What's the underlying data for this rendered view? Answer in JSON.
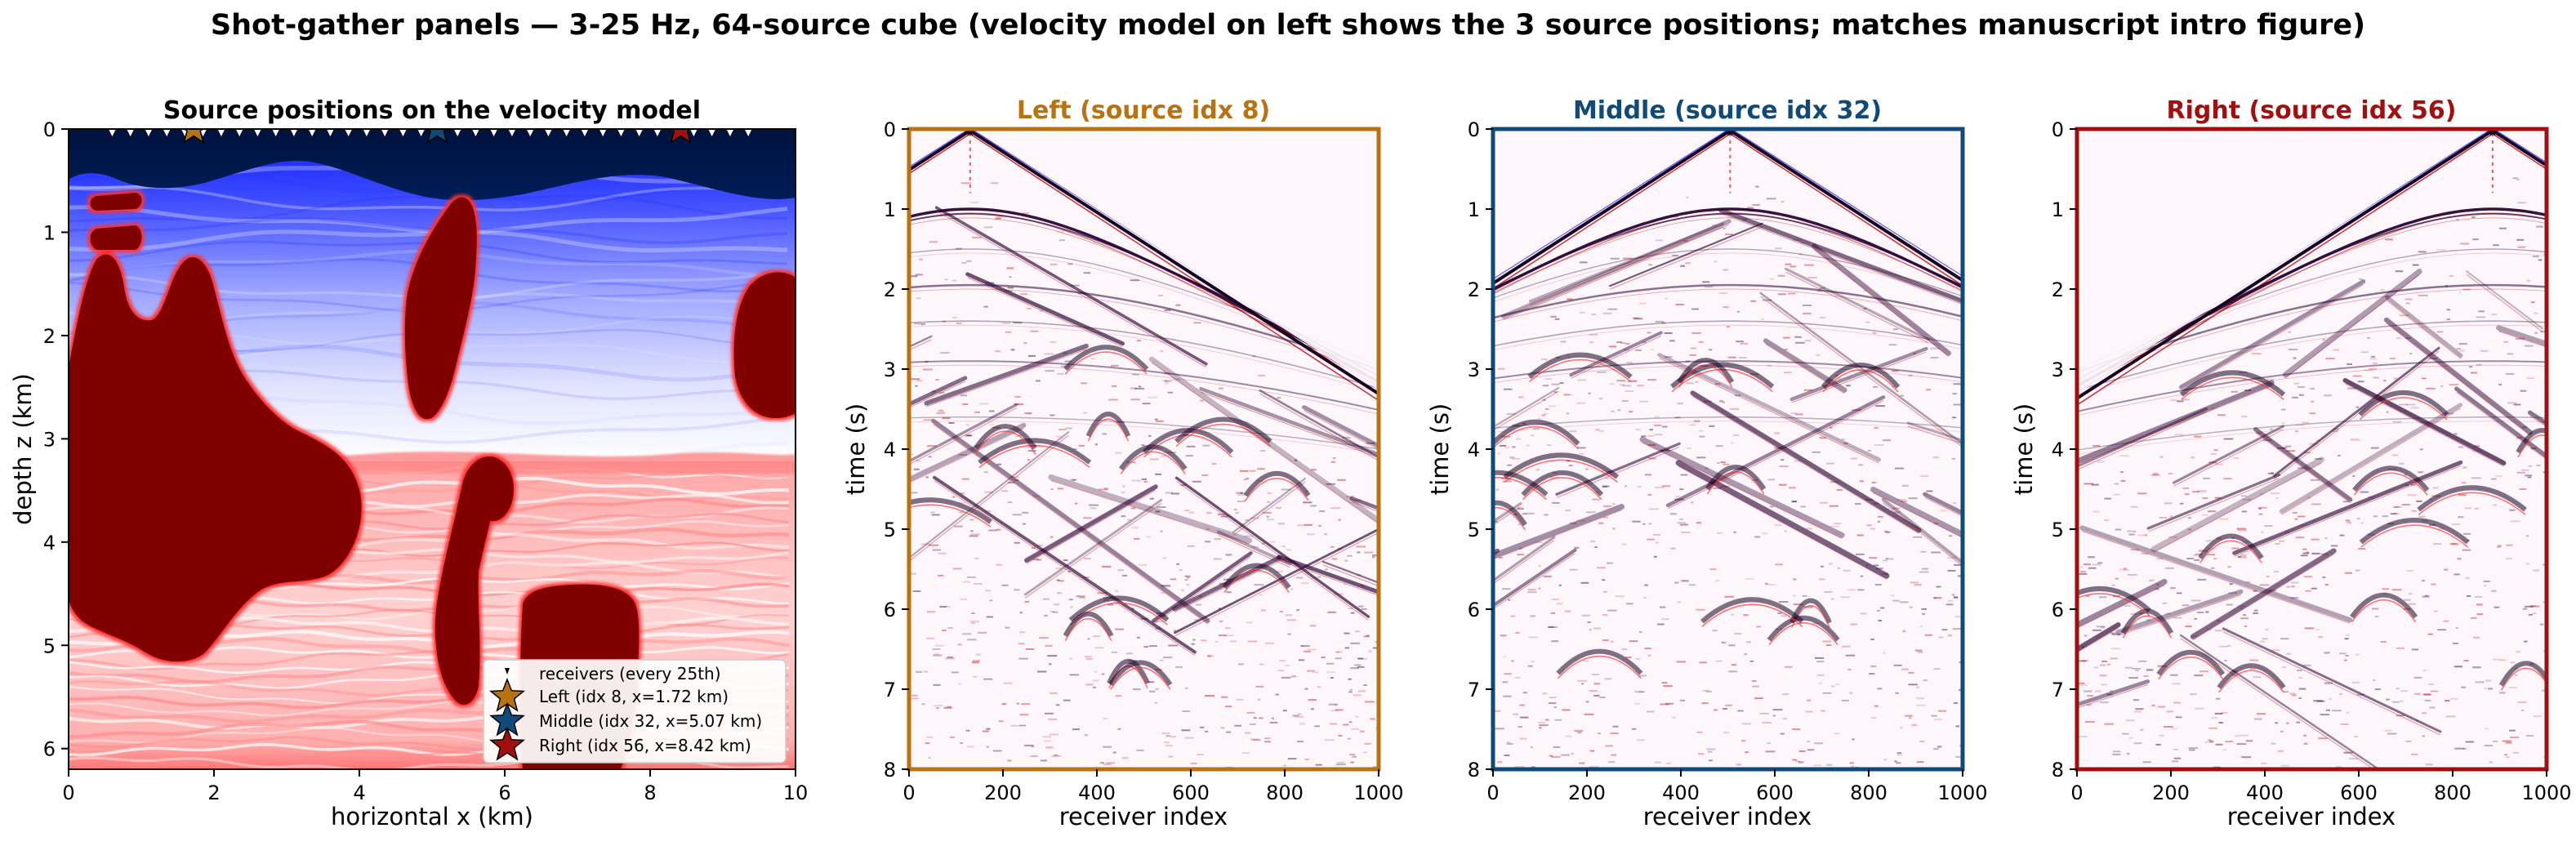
{
  "figure": {
    "suptitle": "Shot-gather panels  —  3-25 Hz, 64-source cube  (velocity model on left shows the 3 source positions; matches manuscript intro figure)"
  },
  "colors": {
    "left": "#b8720f",
    "middle": "#0f4a78",
    "right": "#a30f0f",
    "axis": "#000000",
    "ocean": "#001a4d",
    "salt": "#800000"
  },
  "chart_data": [
    {
      "type": "heatmap",
      "title": "Source positions on the velocity model",
      "xlabel": "horizontal x (km)",
      "ylabel": "depth z (km)",
      "xlim": [
        0,
        10
      ],
      "ylim": [
        6.2,
        0
      ],
      "xticks": [
        "0",
        "2",
        "4",
        "6",
        "8",
        "10"
      ],
      "yticks": [
        "0",
        "1",
        "2",
        "3",
        "4",
        "5",
        "6"
      ],
      "receivers_label": "receivers (every 25th)",
      "receiver_x_km": [
        0.6,
        0.85,
        1.1,
        1.35,
        1.6,
        1.85,
        2.1,
        2.35,
        2.6,
        2.85,
        3.1,
        3.35,
        3.6,
        3.85,
        4.1,
        4.35,
        4.6,
        4.85,
        5.1,
        5.35,
        5.6,
        5.85,
        6.1,
        6.35,
        6.6,
        6.85,
        7.1,
        7.35,
        7.6,
        7.85,
        8.1,
        8.35,
        8.6,
        8.85,
        9.1,
        9.35
      ],
      "sources": [
        {
          "name": "Left",
          "label": "Left  (idx 8, x=1.72 km)",
          "x_km": 1.72,
          "color": "#b8720f"
        },
        {
          "name": "Middle",
          "label": "Middle  (idx 32, x=5.07 km)",
          "x_km": 5.07,
          "color": "#0f4a78"
        },
        {
          "name": "Right",
          "label": "Right  (idx 56, x=8.42 km)",
          "x_km": 8.42,
          "color": "#a30f0f"
        }
      ],
      "legend_position": "lower-right",
      "colormap": "seismic",
      "layers_depth_km": {
        "water_bottom_mean": 0.55,
        "sediment_top": 3.25
      }
    },
    {
      "type": "heatmap",
      "title": "Left  (source idx 8)",
      "xlabel": "receiver index",
      "ylabel": "time (s)",
      "xlim": [
        0,
        1000
      ],
      "ylim": [
        8,
        0
      ],
      "xticks": [
        "0",
        "200",
        "400",
        "600",
        "800",
        "1000"
      ],
      "yticks": [
        "0",
        "1",
        "2",
        "3",
        "4",
        "5",
        "6",
        "7",
        "8"
      ],
      "source_receiver": 130,
      "frame_color": "#b8720f",
      "colormap": "seismic"
    },
    {
      "type": "heatmap",
      "title": "Middle  (source idx 32)",
      "xlabel": "receiver index",
      "ylabel": "time (s)",
      "xlim": [
        0,
        1000
      ],
      "ylim": [
        8,
        0
      ],
      "xticks": [
        "0",
        "200",
        "400",
        "600",
        "800",
        "1000"
      ],
      "yticks": [
        "0",
        "1",
        "2",
        "3",
        "4",
        "5",
        "6",
        "7",
        "8"
      ],
      "source_receiver": 505,
      "frame_color": "#0f4a78",
      "colormap": "seismic"
    },
    {
      "type": "heatmap",
      "title": "Right  (source idx 56)",
      "xlabel": "receiver index",
      "ylabel": "time (s)",
      "xlim": [
        0,
        1000
      ],
      "ylim": [
        8,
        0
      ],
      "xticks": [
        "0",
        "200",
        "400",
        "600",
        "800",
        "1000"
      ],
      "yticks": [
        "0",
        "1",
        "2",
        "3",
        "4",
        "5",
        "6",
        "7",
        "8"
      ],
      "source_receiver": 885,
      "frame_color": "#a30f0f",
      "colormap": "seismic"
    }
  ]
}
